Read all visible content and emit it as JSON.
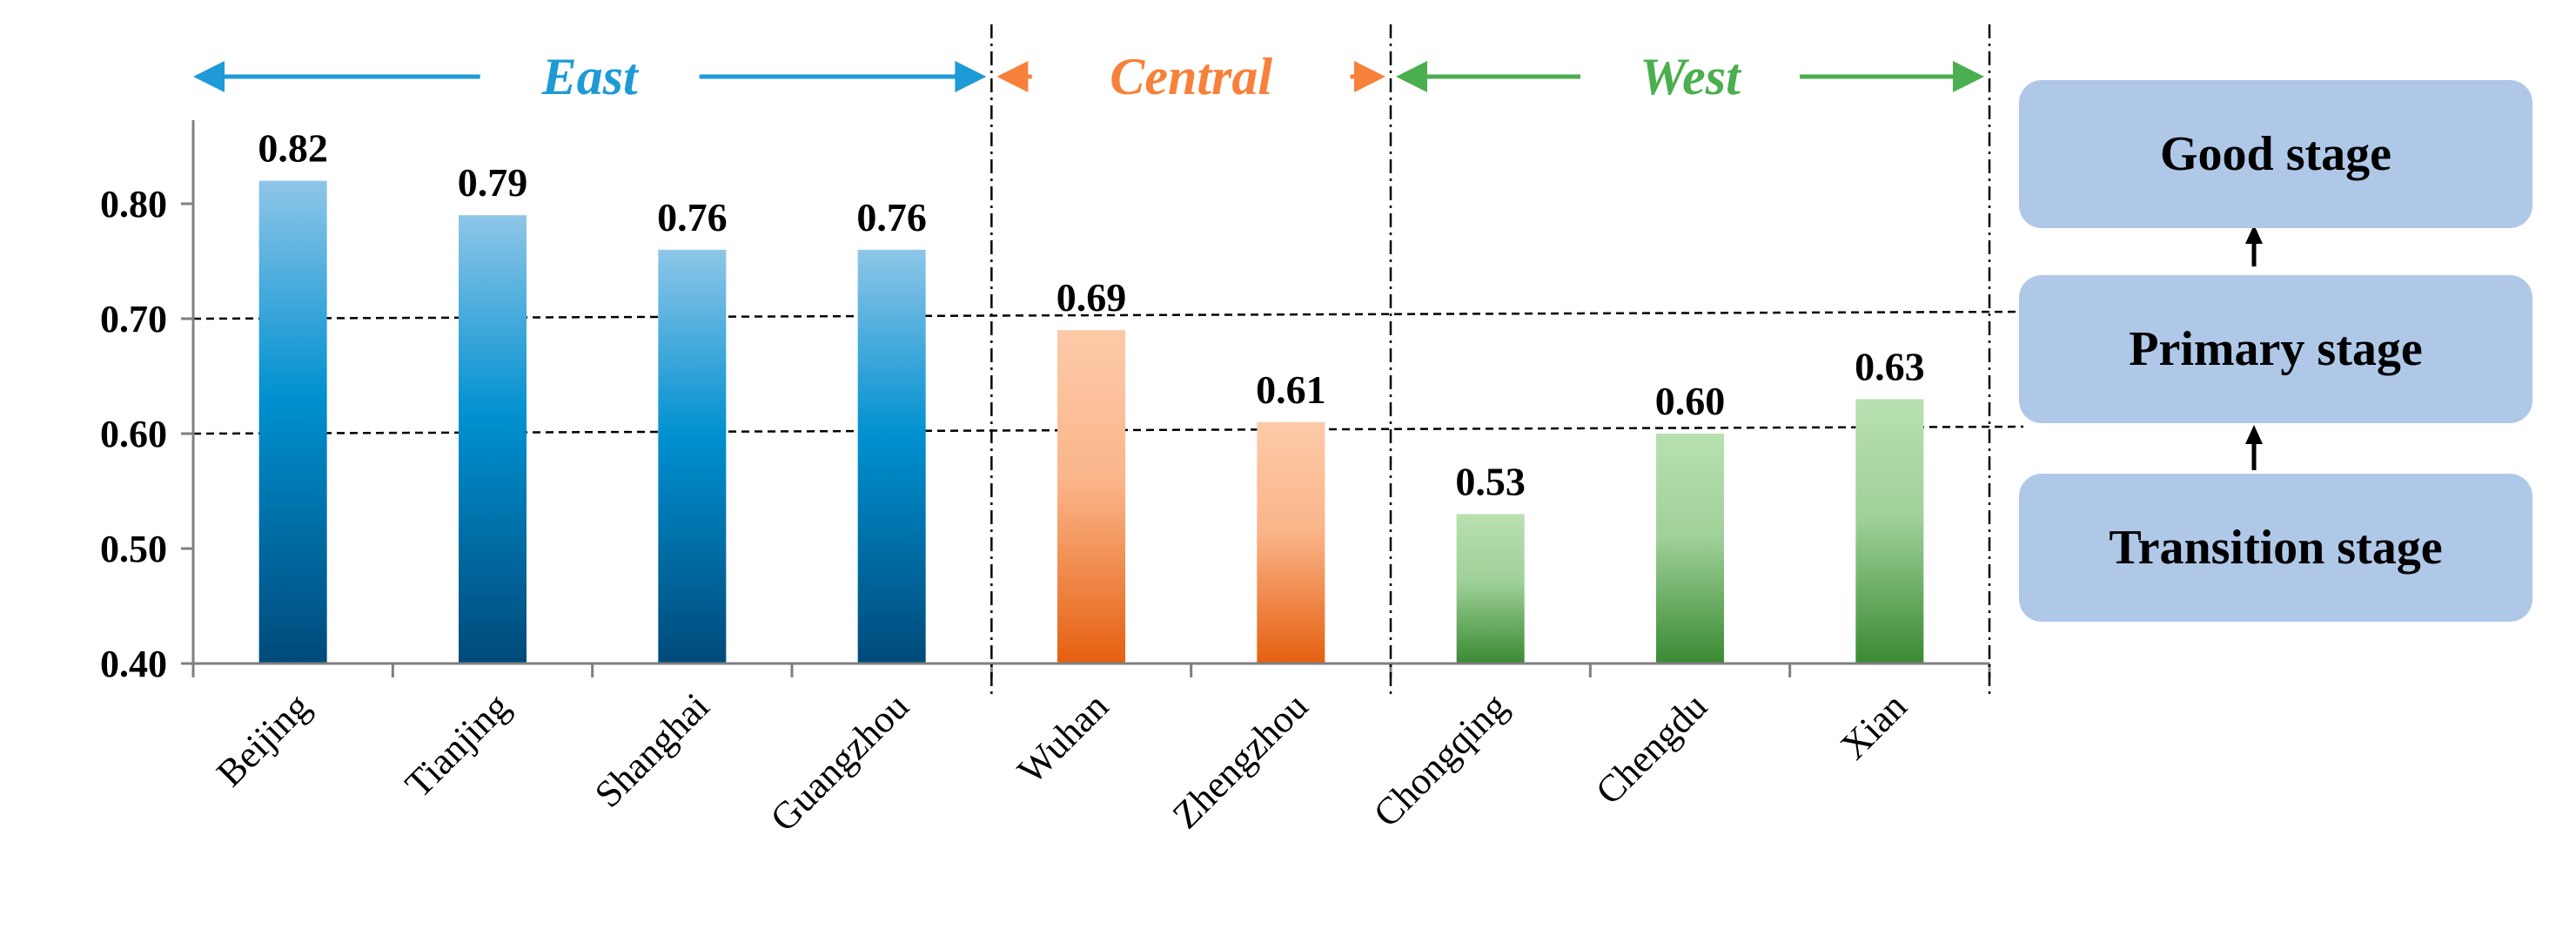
{
  "chart_data": {
    "type": "bar",
    "categories": [
      "Beijing",
      "Tianjing",
      "Shanghai",
      "Guangzhou",
      "Wuhan",
      "Zhengzhou",
      "Chongqing",
      "Chengdu",
      "Xian"
    ],
    "values": [
      0.82,
      0.79,
      0.76,
      0.76,
      0.69,
      0.61,
      0.53,
      0.6,
      0.63
    ],
    "data_labels": [
      "0.82",
      "0.79",
      "0.76",
      "0.76",
      "0.69",
      "0.61",
      "0.53",
      "0.60",
      "0.63"
    ],
    "ylim": [
      0.4,
      0.85
    ],
    "yticks": [
      "0.40",
      "0.50",
      "0.60",
      "0.70",
      "0.80"
    ],
    "title": "",
    "xlabel": "",
    "ylabel": "",
    "grid": false,
    "reference_lines": [
      0.6,
      0.7
    ],
    "regions": [
      {
        "name": "East",
        "categories": [
          "Beijing",
          "Tianjing",
          "Shanghai",
          "Guangzhou"
        ],
        "color": "#1e9ad6",
        "bar_gradient": [
          "#8ec6e8",
          "#0090d0",
          "#004a7a"
        ]
      },
      {
        "name": "Central",
        "categories": [
          "Wuhan",
          "Zhengzhou"
        ],
        "color": "#f7813a",
        "bar_gradient": [
          "#fccaa8",
          "#fbb58a",
          "#e5600f"
        ]
      },
      {
        "name": "West",
        "categories": [
          "Chongqing",
          "Chengdu",
          "Xian"
        ],
        "color": "#4bae4f",
        "bar_gradient": [
          "#b8e0b0",
          "#9fd198",
          "#3a8a33"
        ]
      }
    ]
  },
  "stages": {
    "good": "Good stage",
    "primary": "Primary stage",
    "transition": "Transition stage",
    "box_color": "#afc8e8"
  }
}
